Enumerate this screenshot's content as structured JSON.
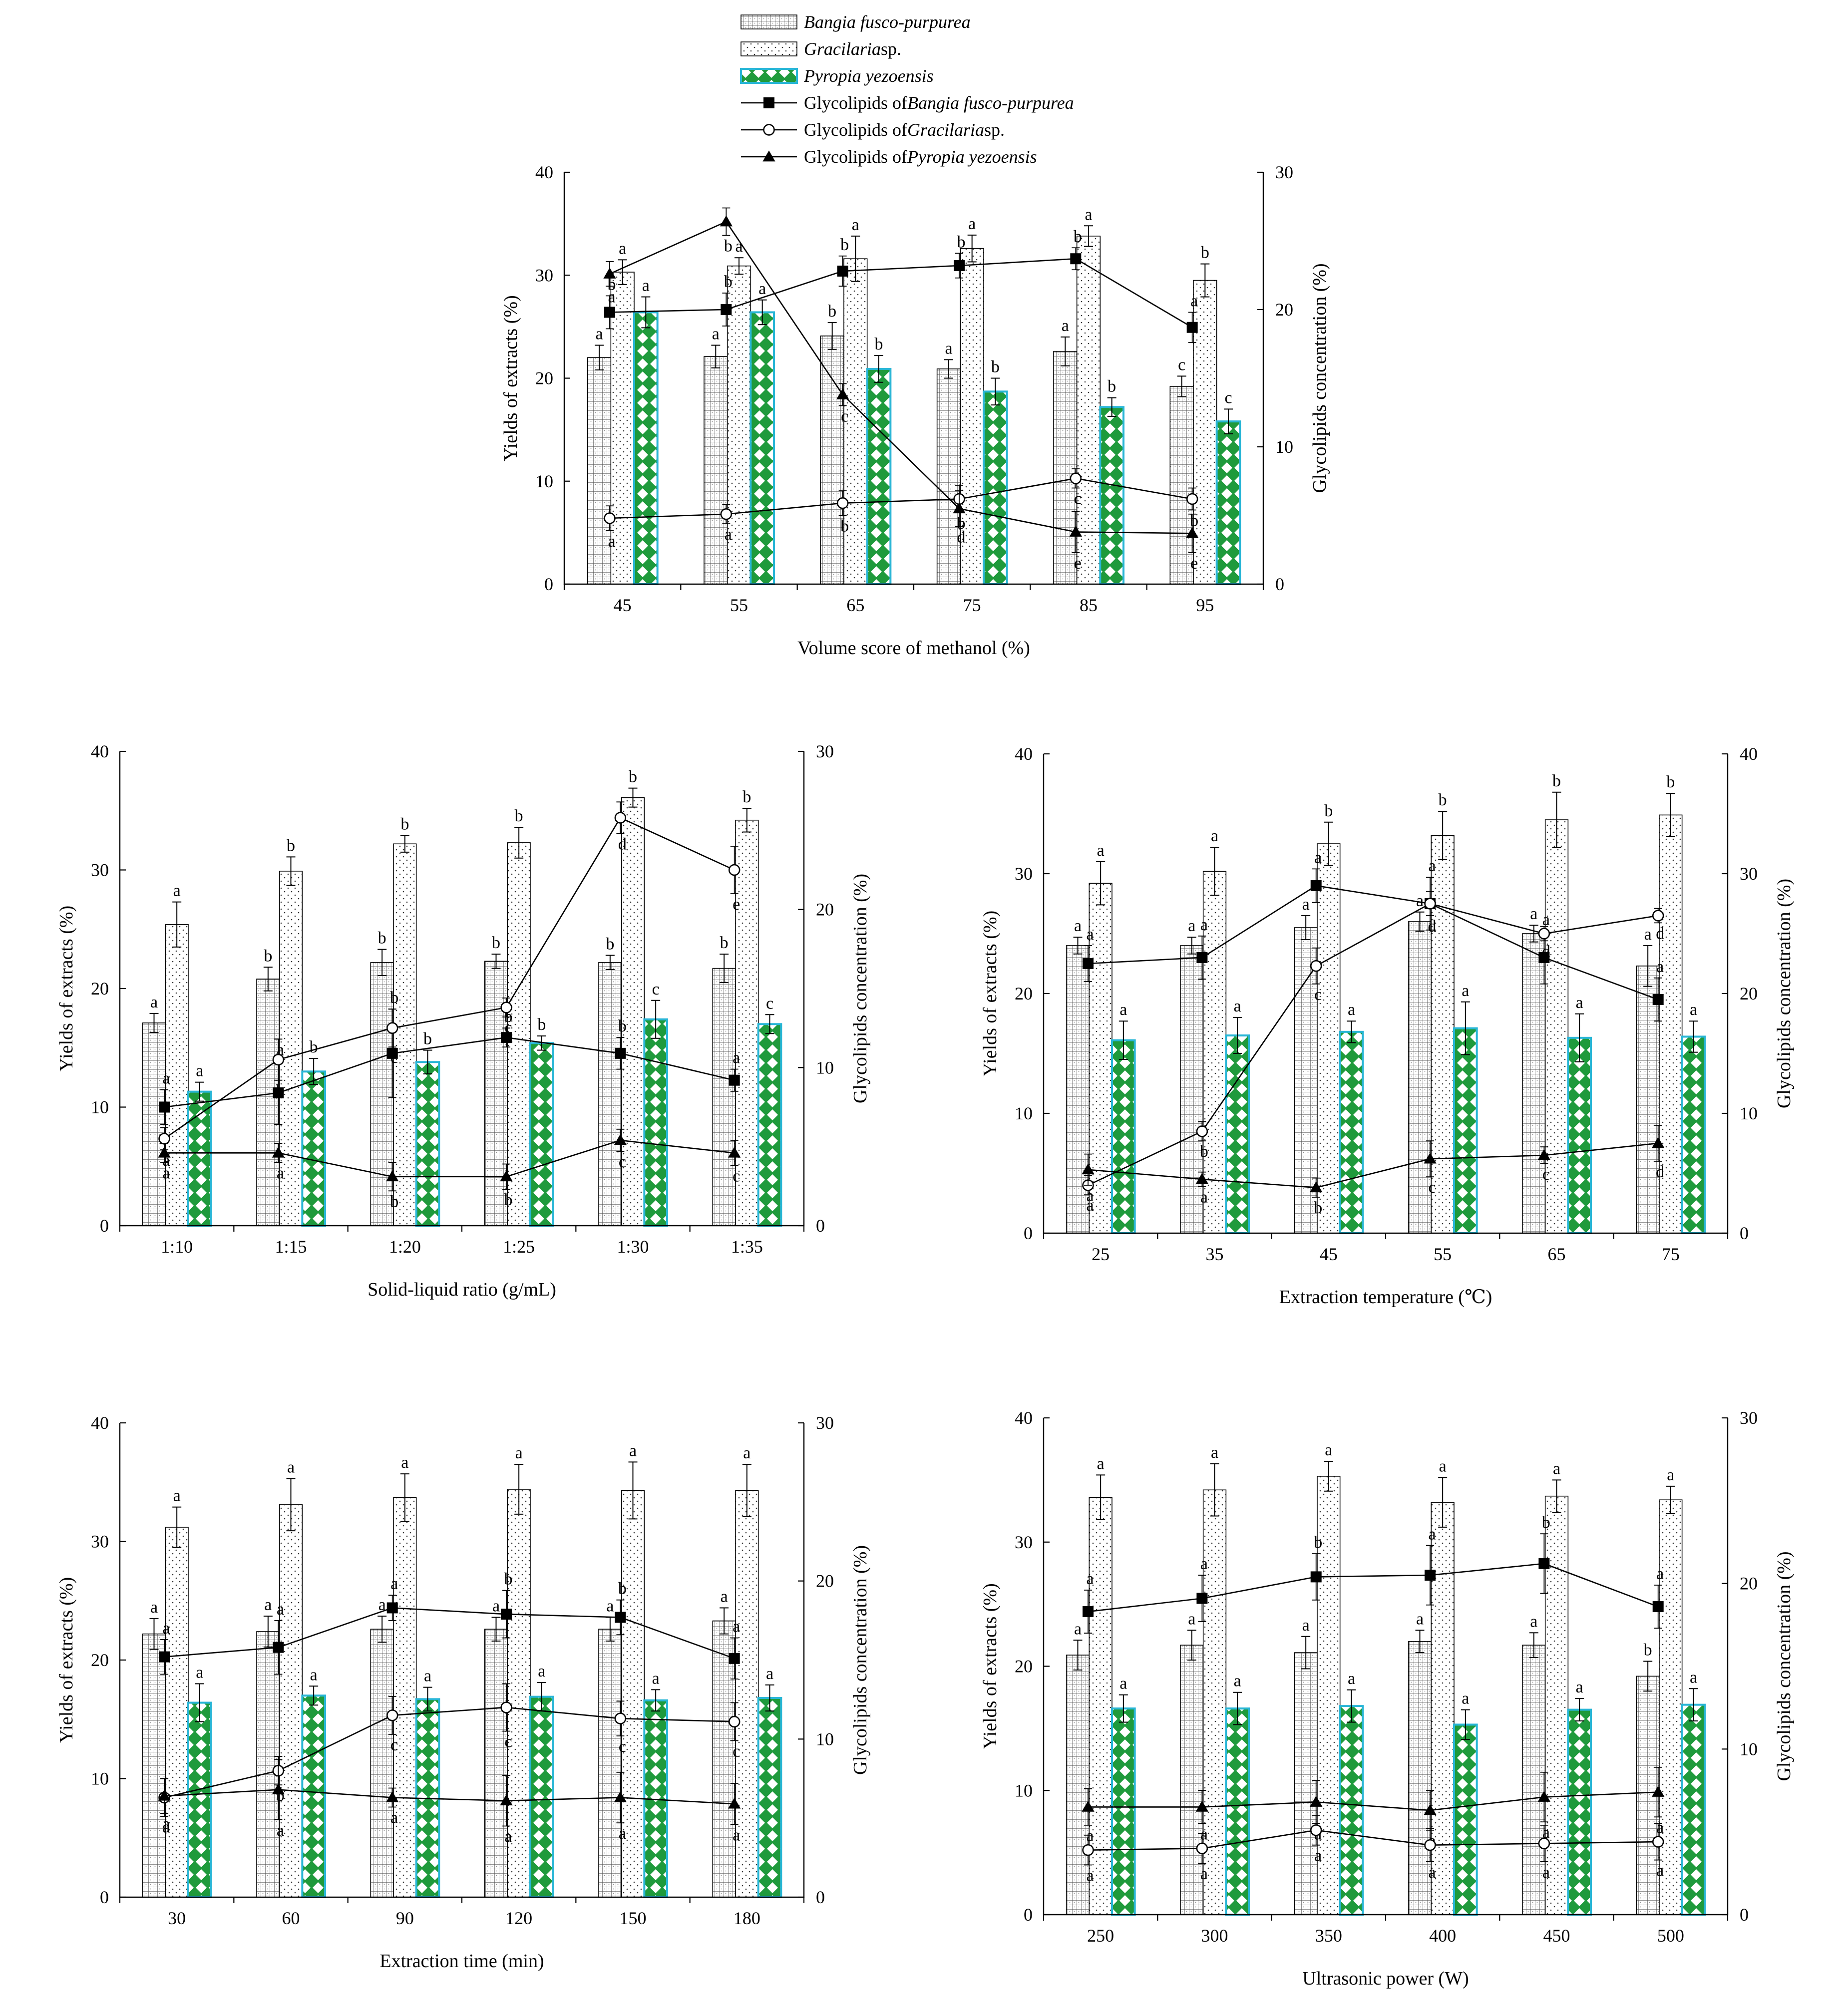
{
  "legend": {
    "items": [
      {
        "kind": "bar",
        "pattern": "grid",
        "prefix": "",
        "species": "Bangia fusco-purpurea",
        "suffix": ""
      },
      {
        "kind": "bar",
        "pattern": "dots",
        "prefix": "",
        "species": "Gracilaria",
        "suffix": " sp."
      },
      {
        "kind": "bar",
        "pattern": "diamond",
        "prefix": "",
        "species": "Pyropia yezoensis",
        "suffix": ""
      },
      {
        "kind": "line",
        "marker": "square",
        "prefix": "Glycolipids of  ",
        "species": "Bangia fusco-purpurea",
        "suffix": ""
      },
      {
        "kind": "line",
        "marker": "circle",
        "prefix": "Glycolipids of  ",
        "species": "Gracilaria",
        "suffix": " sp."
      },
      {
        "kind": "line",
        "marker": "triangle",
        "prefix": "Glycolipids of ",
        "species": "Pyropia yezoensis",
        "suffix": ""
      }
    ]
  },
  "colors": {
    "pyropia_fill": "#1f9a3c",
    "pyropia_edge": "#29b6d6",
    "ink": "#000000"
  },
  "chart_data": [
    {
      "type": "bar",
      "xlabel": "Volume score of methanol (%)",
      "ylabel": "Yields of extracts  (%)",
      "y2label": "Glycolipids concentration (%)",
      "categories": [
        "45",
        "55",
        "65",
        "75",
        "85",
        "95"
      ],
      "ylim": [
        0,
        40
      ],
      "y2lim": [
        0,
        30
      ],
      "yticks": [
        "0",
        "10",
        "20",
        "30",
        "40"
      ],
      "y2ticks": [
        "0",
        "10",
        "20",
        "30"
      ],
      "bars": [
        {
          "name": "Bangia fusco-purpurea",
          "values": [
            22.0,
            22.1,
            24.1,
            20.9,
            22.6,
            19.2
          ],
          "err": [
            1.2,
            1.1,
            1.3,
            0.9,
            1.4,
            1.0
          ],
          "letters": [
            "a",
            "a",
            "b",
            "a",
            "a",
            "c"
          ]
        },
        {
          "name": "Gracilaria sp.",
          "values": [
            30.3,
            30.9,
            31.6,
            32.6,
            33.8,
            29.5
          ],
          "err": [
            1.2,
            0.8,
            2.2,
            1.3,
            1.0,
            1.6
          ],
          "letters": [
            "a",
            "a",
            "a",
            "a",
            "a",
            "b"
          ]
        },
        {
          "name": "Pyropia yezoensis",
          "values": [
            26.4,
            26.4,
            20.9,
            18.7,
            17.2,
            15.8
          ],
          "err": [
            1.5,
            1.2,
            1.3,
            1.3,
            0.9,
            1.2
          ],
          "letters": [
            "a",
            "a",
            "b",
            "b",
            "b",
            "c"
          ]
        }
      ],
      "lines": [
        {
          "name": "Glycolipids of Bangia fusco-purpurea",
          "values": [
            19.8,
            20.0,
            22.8,
            23.2,
            23.7,
            18.7
          ],
          "err": [
            1.2,
            1.2,
            1.1,
            0.9,
            0.8,
            1.1
          ],
          "letters": [
            "b",
            "b",
            "b",
            "b",
            "b",
            "a"
          ]
        },
        {
          "name": "Glycolipids of Gracilaria sp.",
          "values": [
            4.8,
            5.1,
            5.9,
            6.2,
            7.7,
            6.2
          ],
          "err": [
            0.9,
            0.7,
            0.9,
            1.0,
            0.7,
            0.8
          ],
          "letters": [
            "a",
            "a",
            "b",
            "b",
            "c",
            "b"
          ]
        },
        {
          "name": "Glycolipids of Pyropia yezoensis",
          "values": [
            22.6,
            26.4,
            13.8,
            5.5,
            3.8,
            3.7
          ],
          "err": [
            0.9,
            1.0,
            0.8,
            1.3,
            1.5,
            1.4
          ],
          "letters": [
            "a",
            "b",
            "c",
            "d",
            "e",
            "e"
          ]
        }
      ]
    },
    {
      "type": "bar",
      "xlabel": "Solid-liquid ratio (g/mL)",
      "ylabel": "Yields of extracts  (%)",
      "y2label": "Glycolipids concentration (%)",
      "categories": [
        "1:10",
        "1:15",
        "1:20",
        "1:25",
        "1:30",
        "1:35"
      ],
      "ylim": [
        0,
        40
      ],
      "y2lim": [
        0,
        30
      ],
      "yticks": [
        "0",
        "10",
        "20",
        "30",
        "40"
      ],
      "y2ticks": [
        "0",
        "10",
        "20",
        "30"
      ],
      "bars": [
        {
          "name": "Bangia fusco-purpurea",
          "values": [
            17.1,
            20.8,
            22.2,
            22.3,
            22.2,
            21.7
          ],
          "err": [
            0.8,
            1.0,
            1.1,
            0.6,
            0.6,
            1.2
          ],
          "letters": [
            "a",
            "b",
            "b",
            "b",
            "b",
            "b"
          ]
        },
        {
          "name": "Gracilaria sp.",
          "values": [
            25.4,
            29.9,
            32.2,
            32.3,
            36.1,
            34.2
          ],
          "err": [
            1.9,
            1.2,
            0.7,
            1.3,
            0.8,
            1.0
          ],
          "letters": [
            "a",
            "b",
            "b",
            "b",
            "b",
            "b"
          ]
        },
        {
          "name": "Pyropia yezoensis",
          "values": [
            11.3,
            13.0,
            13.8,
            15.4,
            17.4,
            17.0
          ],
          "err": [
            0.8,
            1.1,
            1.0,
            0.6,
            1.6,
            0.8
          ],
          "letters": [
            "a",
            "b",
            "b",
            "b",
            "c",
            "c"
          ]
        }
      ],
      "lines": [
        {
          "name": "Glycolipids of Bangia fusco-purpurea",
          "values": [
            7.5,
            8.4,
            10.9,
            11.9,
            10.9,
            9.2
          ],
          "err": [
            1.1,
            2.0,
            2.8,
            0.6,
            1.0,
            0.7
          ],
          "letters": [
            "a",
            "a",
            "b",
            "b",
            "b",
            "a"
          ]
        },
        {
          "name": "Glycolipids of Gracilaria sp.",
          "values": [
            5.5,
            10.5,
            12.5,
            13.8,
            25.8,
            22.5
          ],
          "err": [
            0.7,
            1.3,
            1.2,
            0.6,
            1.0,
            1.5
          ],
          "letters": [
            "a",
            "b",
            "c",
            "c",
            "d",
            "e"
          ]
        },
        {
          "name": "Glycolipids of Pyropia yezoensis",
          "values": [
            4.6,
            4.6,
            3.1,
            3.1,
            5.4,
            4.6
          ],
          "err": [
            0.6,
            0.6,
            0.9,
            0.8,
            0.7,
            0.8
          ],
          "letters": [
            "a",
            "a",
            "b",
            "b",
            "c",
            "c"
          ]
        }
      ]
    },
    {
      "type": "bar",
      "xlabel": "Extraction temperature (℃)",
      "ylabel": "Yields of extracts  (%)",
      "y2label": "Glycolipids concentration (%)",
      "categories": [
        "25",
        "35",
        "45",
        "55",
        "65",
        "75"
      ],
      "ylim": [
        0,
        40
      ],
      "y2lim": [
        0,
        40
      ],
      "yticks": [
        "0",
        "10",
        "20",
        "30",
        "40"
      ],
      "y2ticks": [
        "0",
        "10",
        "20",
        "30",
        "40"
      ],
      "bars": [
        {
          "name": "Bangia fusco-purpurea",
          "values": [
            24.0,
            24.0,
            25.5,
            26.0,
            25.0,
            22.3
          ],
          "err": [
            0.7,
            0.7,
            1.0,
            0.8,
            0.7,
            1.7
          ],
          "letters": [
            "a",
            "a",
            "a",
            "a",
            "a",
            "a"
          ]
        },
        {
          "name": "Gracilaria sp.",
          "values": [
            29.2,
            30.2,
            32.5,
            33.2,
            34.5,
            34.9
          ],
          "err": [
            1.8,
            2.0,
            1.8,
            2.0,
            2.3,
            1.8
          ],
          "letters": [
            "a",
            "a",
            "b",
            "b",
            "b",
            "b"
          ]
        },
        {
          "name": "Pyropia yezoensis",
          "values": [
            16.1,
            16.5,
            16.8,
            17.1,
            16.3,
            16.4
          ],
          "err": [
            1.6,
            1.5,
            0.9,
            2.2,
            2.0,
            1.3
          ],
          "letters": [
            "a",
            "a",
            "a",
            "a",
            "a",
            "a"
          ]
        }
      ],
      "lines": [
        {
          "name": "Glycolipids of Bangia fusco-purpurea",
          "values": [
            22.5,
            23.0,
            29.0,
            27.5,
            23.0,
            19.5
          ],
          "err": [
            1.5,
            1.8,
            1.4,
            2.2,
            2.2,
            1.8
          ],
          "letters": [
            "a",
            "a",
            "a",
            "a",
            "a",
            "a"
          ]
        },
        {
          "name": "Glycolipids of Gracilaria sp.",
          "values": [
            4.0,
            8.5,
            22.3,
            27.5,
            25.0,
            26.5
          ],
          "err": [
            0.8,
            0.8,
            1.5,
            1.0,
            0.6,
            0.6
          ],
          "letters": [
            "a",
            "b",
            "c",
            "d",
            "d",
            "d"
          ]
        },
        {
          "name": "Glycolipids of Pyropia yezoensis",
          "values": [
            5.3,
            4.5,
            3.8,
            6.2,
            6.5,
            7.5
          ],
          "err": [
            1.3,
            0.6,
            0.8,
            1.5,
            0.7,
            1.5
          ],
          "letters": [
            "a",
            "a",
            "b",
            "c",
            "c",
            "d"
          ]
        }
      ]
    },
    {
      "type": "bar",
      "xlabel": "Extraction time (min)",
      "ylabel": "Yields of extracts  (%)",
      "y2label": "Glycolipids concentration (%)",
      "categories": [
        "30",
        "60",
        "90",
        "120",
        "150",
        "180"
      ],
      "ylim": [
        0,
        40
      ],
      "y2lim": [
        0,
        30
      ],
      "yticks": [
        "0",
        "10",
        "20",
        "30",
        "40"
      ],
      "y2ticks": [
        "0",
        "10",
        "20",
        "30"
      ],
      "bars": [
        {
          "name": "Bangia fusco-purpurea",
          "values": [
            22.2,
            22.4,
            22.6,
            22.6,
            22.6,
            23.3
          ],
          "err": [
            1.3,
            1.3,
            1.1,
            1.0,
            1.0,
            1.1
          ],
          "letters": [
            "a",
            "a",
            "a",
            "a",
            "a",
            "a"
          ]
        },
        {
          "name": "Gracilaria sp.",
          "values": [
            31.2,
            33.1,
            33.7,
            34.4,
            34.3,
            34.3
          ],
          "err": [
            1.7,
            2.2,
            2.0,
            2.1,
            2.4,
            2.2
          ],
          "letters": [
            "a",
            "a",
            "a",
            "a",
            "a",
            "a"
          ]
        },
        {
          "name": "Pyropia yezoensis",
          "values": [
            16.4,
            17.0,
            16.7,
            16.9,
            16.6,
            16.8
          ],
          "err": [
            1.6,
            0.8,
            1.0,
            1.2,
            0.9,
            1.1
          ],
          "letters": [
            "a",
            "a",
            "a",
            "a",
            "a",
            "a"
          ]
        }
      ],
      "lines": [
        {
          "name": "Glycolipids of Bangia fusco-purpurea",
          "values": [
            15.2,
            15.8,
            18.3,
            17.9,
            17.7,
            15.1
          ],
          "err": [
            1.1,
            1.7,
            0.8,
            1.5,
            1.1,
            1.3
          ],
          "letters": [
            "a",
            "a",
            "a",
            "b",
            "b",
            "a"
          ]
        },
        {
          "name": "Glycolipids of Gracilaria sp.",
          "values": [
            6.3,
            8.0,
            11.5,
            12.0,
            11.3,
            11.1
          ],
          "err": [
            1.2,
            0.9,
            1.2,
            1.5,
            1.1,
            1.2
          ],
          "letters": [
            "a",
            "b",
            "c",
            "c",
            "c",
            "c"
          ]
        },
        {
          "name": "Glycolipids of Pyropia yezoensis",
          "values": [
            6.4,
            6.8,
            6.3,
            6.1,
            6.3,
            5.9
          ],
          "err": [
            1.1,
            1.9,
            0.6,
            1.6,
            1.6,
            1.3
          ],
          "letters": [
            "a",
            "a",
            "a",
            "a",
            "a",
            "a"
          ]
        }
      ]
    },
    {
      "type": "bar",
      "xlabel": "Ultrasonic power (W)",
      "ylabel": "Yields of extracts  (%)",
      "y2label": "Glycolipids concentration (%)",
      "categories": [
        "250",
        "300",
        "350",
        "400",
        "450",
        "500"
      ],
      "ylim": [
        0,
        40
      ],
      "y2lim": [
        0,
        30
      ],
      "yticks": [
        "0",
        "10",
        "20",
        "30",
        "40"
      ],
      "y2ticks": [
        "0",
        "10",
        "20",
        "30"
      ],
      "bars": [
        {
          "name": "Bangia fusco-purpurea",
          "values": [
            20.9,
            21.7,
            21.1,
            22.0,
            21.7,
            19.2
          ],
          "err": [
            1.2,
            1.2,
            1.3,
            0.9,
            1.0,
            1.2
          ],
          "letters": [
            "a",
            "a",
            "a",
            "a",
            "a",
            "b"
          ]
        },
        {
          "name": "Gracilaria sp.",
          "values": [
            33.6,
            34.2,
            35.3,
            33.2,
            33.7,
            33.4
          ],
          "err": [
            1.8,
            2.1,
            1.2,
            2.0,
            1.3,
            1.1
          ],
          "letters": [
            "a",
            "a",
            "a",
            "a",
            "a",
            "a"
          ]
        },
        {
          "name": "Pyropia yezoensis",
          "values": [
            16.6,
            16.6,
            16.8,
            15.3,
            16.5,
            16.9
          ],
          "err": [
            1.1,
            1.3,
            1.3,
            1.2,
            0.9,
            1.3
          ],
          "letters": [
            "a",
            "a",
            "a",
            "a",
            "a",
            "a"
          ]
        }
      ],
      "lines": [
        {
          "name": "Glycolipids of Bangia fusco-purpurea",
          "values": [
            18.3,
            19.1,
            20.4,
            20.5,
            21.2,
            18.6
          ],
          "err": [
            1.3,
            1.4,
            1.4,
            1.8,
            1.8,
            1.3
          ],
          "letters": [
            "a",
            "a",
            "b",
            "a",
            "b",
            "a"
          ]
        },
        {
          "name": "Glycolipids of Gracilaria sp.",
          "values": [
            3.9,
            4.0,
            5.1,
            4.2,
            4.3,
            4.4
          ],
          "err": [
            0.9,
            0.9,
            0.9,
            1.0,
            1.1,
            1.1
          ],
          "letters": [
            "a",
            "a",
            "a",
            "a",
            "a",
            "a"
          ]
        },
        {
          "name": "Glycolipids of Pyropia yezoensis",
          "values": [
            6.5,
            6.5,
            6.8,
            6.3,
            7.1,
            7.4
          ],
          "err": [
            1.1,
            1.0,
            1.3,
            1.2,
            1.5,
            1.5
          ],
          "letters": [
            "a",
            "a",
            "a",
            "a",
            "a",
            "a"
          ]
        }
      ]
    }
  ]
}
